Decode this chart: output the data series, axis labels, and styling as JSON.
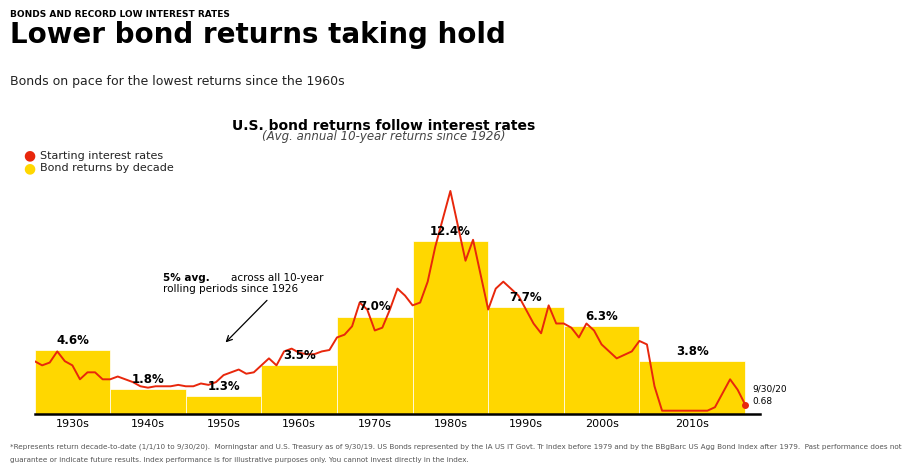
{
  "title_small": "BONDS AND RECORD LOW INTEREST RATES",
  "title_large": "Lower bond returns taking hold",
  "subtitle": "Bonds on pace for the lowest returns since the 1960s",
  "chart_title": "U.S. bond returns follow interest rates",
  "chart_subtitle": "(Avg. annual 10-year returns since 1926)",
  "decades": [
    "1930s",
    "1940s",
    "1950s",
    "1960s",
    "1970s",
    "1980s",
    "1990s",
    "2000s",
    "2010s"
  ],
  "bar_values": [
    4.6,
    1.8,
    1.3,
    3.5,
    7.0,
    12.4,
    7.7,
    6.3,
    3.8
  ],
  "bar_color": "#FFD700",
  "line_color": "#E8270C",
  "footnote": "*Represents return decade-to-date (1/1/10 to 9/30/20).  Morningstar and U.S. Treasury as of 9/30/19. US Bonds represented by the IA US IT Govt. Tr Index before 1979 and by the BBgBarc US Agg Bond Index after 1979.  Past performance does not guarantee or indicate future results. Index performance is for illustrative purposes only. You cannot invest directly in the index.",
  "interest_rate_x": [
    1926,
    1927,
    1928,
    1929,
    1930,
    1931,
    1932,
    1933,
    1934,
    1935,
    1936,
    1937,
    1938,
    1939,
    1940,
    1941,
    1942,
    1943,
    1944,
    1945,
    1946,
    1947,
    1948,
    1949,
    1950,
    1951,
    1952,
    1953,
    1954,
    1955,
    1956,
    1957,
    1958,
    1959,
    1960,
    1961,
    1962,
    1963,
    1964,
    1965,
    1966,
    1967,
    1968,
    1969,
    1970,
    1971,
    1972,
    1973,
    1974,
    1975,
    1976,
    1977,
    1978,
    1979,
    1980,
    1981,
    1982,
    1983,
    1984,
    1985,
    1986,
    1987,
    1988,
    1989,
    1990,
    1991,
    1992,
    1993,
    1994,
    1995,
    1996,
    1997,
    1998,
    1999,
    2000,
    2001,
    2002,
    2003,
    2004,
    2005,
    2006,
    2007,
    2008,
    2009,
    2010,
    2011,
    2012,
    2013,
    2014,
    2015,
    2016,
    2017,
    2018,
    2019,
    2020
  ],
  "interest_rate_y": [
    3.8,
    3.5,
    3.7,
    4.5,
    3.8,
    3.5,
    2.5,
    3.0,
    3.0,
    2.5,
    2.5,
    2.7,
    2.5,
    2.3,
    2.0,
    1.9,
    2.0,
    2.0,
    2.0,
    2.1,
    2.0,
    2.0,
    2.2,
    2.1,
    2.3,
    2.8,
    3.0,
    3.2,
    2.9,
    3.0,
    3.5,
    4.0,
    3.5,
    4.5,
    4.7,
    4.4,
    4.3,
    4.3,
    4.5,
    4.6,
    5.5,
    5.7,
    6.3,
    8.0,
    7.5,
    6.0,
    6.2,
    7.5,
    9.0,
    8.5,
    7.8,
    8.0,
    9.5,
    12.0,
    14.0,
    16.0,
    13.5,
    11.0,
    12.5,
    10.0,
    7.5,
    9.0,
    9.5,
    9.0,
    8.5,
    7.5,
    6.5,
    5.8,
    7.8,
    6.5,
    6.5,
    6.2,
    5.5,
    6.5,
    6.0,
    5.0,
    4.5,
    4.0,
    4.25,
    4.5,
    5.25,
    5.0,
    2.0,
    0.25,
    0.25,
    0.25,
    0.25,
    0.25,
    0.25,
    0.25,
    0.5,
    1.5,
    2.5,
    1.75,
    0.68
  ],
  "background_color": "#ffffff"
}
